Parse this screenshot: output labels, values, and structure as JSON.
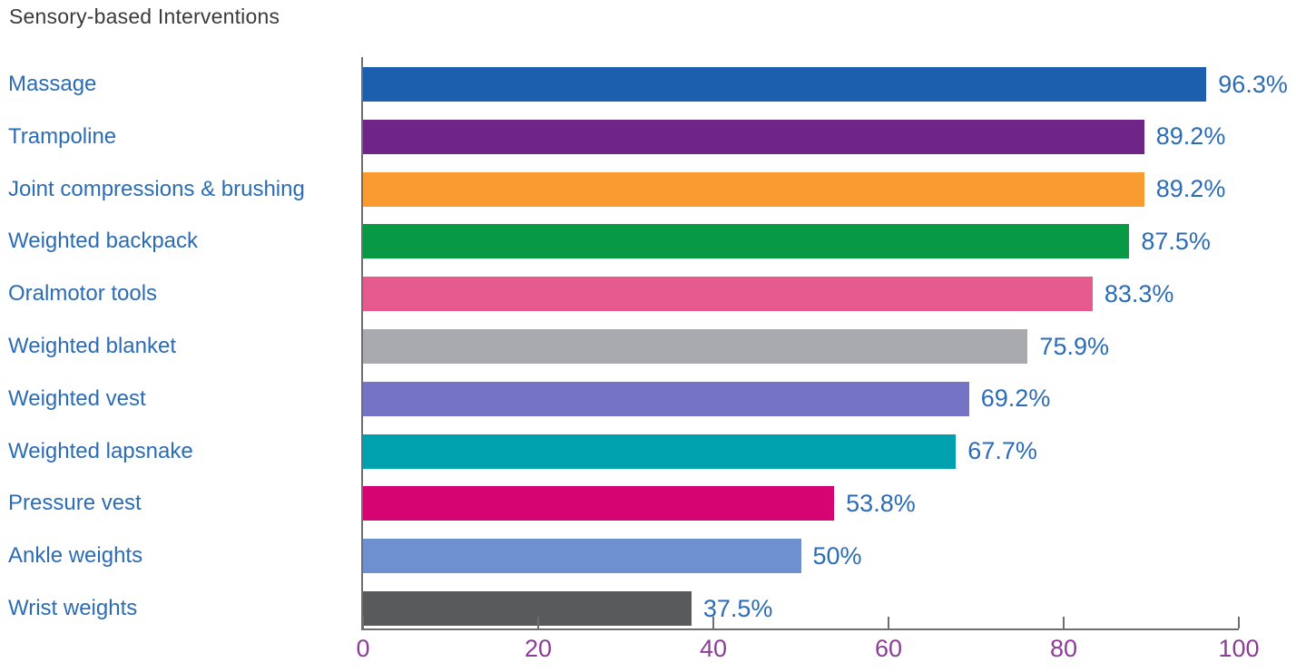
{
  "colors": {
    "title": "#3b3b3d",
    "category_label": "#2b6cb5",
    "value_label": "#2b6cb5",
    "tick_label": "#8c3d97",
    "axis_line": "#6d6e71"
  },
  "chart_data": {
    "type": "bar",
    "orientation": "horizontal",
    "title": "Sensory-based Interventions",
    "xlabel": "",
    "ylabel": "",
    "xlim": [
      0,
      100
    ],
    "grid": false,
    "legend": false,
    "categories": [
      "Massage",
      "Trampoline",
      "Joint compressions & brushing",
      "Weighted backpack",
      "Oralmotor tools",
      "Weighted blanket",
      "Weighted vest",
      "Weighted lapsnake",
      "Pressure vest",
      "Ankle weights",
      "Wrist weights"
    ],
    "values": [
      96.3,
      89.2,
      89.2,
      87.5,
      83.3,
      75.9,
      69.2,
      67.7,
      53.8,
      50,
      37.5
    ],
    "value_labels": [
      "96.3%",
      "89.2%",
      "89.2%",
      "87.5%",
      "83.3%",
      "75.9%",
      "69.2%",
      "67.7%",
      "53.8%",
      "50%",
      "37.5%"
    ],
    "bar_colors": [
      "#1b5fae",
      "#6f2487",
      "#f99b30",
      "#079944",
      "#e75a8e",
      "#a9aaae",
      "#7573c6",
      "#00a1ae",
      "#d60472",
      "#6f90ce",
      "#595a5c"
    ],
    "x_ticks": [
      0,
      20,
      40,
      60,
      80,
      100
    ],
    "x_tick_labels": [
      "0",
      "20",
      "40",
      "60",
      "80",
      "100"
    ]
  }
}
